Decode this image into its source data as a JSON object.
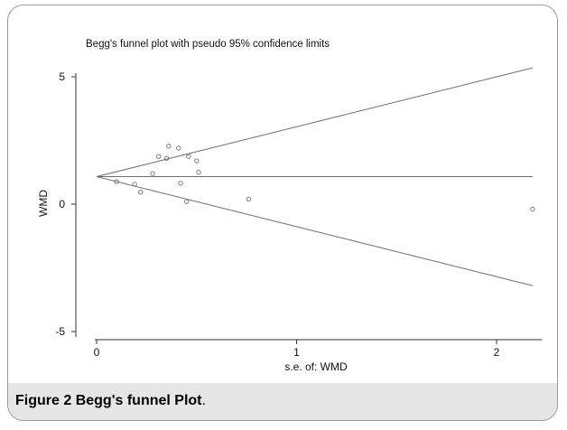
{
  "chart_data": {
    "type": "scatter",
    "title": "Begg's funnel plot with pseudo 95% confidence limits",
    "xlabel": "s.e. of: WMD",
    "ylabel": "WMD",
    "xlim": [
      0,
      2.2
    ],
    "ylim": [
      -5,
      5
    ],
    "x_ticks": [
      "0",
      "1",
      "2"
    ],
    "y_ticks": [
      "5",
      "0",
      "-5"
    ],
    "x_tick_values": [
      0,
      1,
      2
    ],
    "y_tick_values": [
      5,
      0,
      -5
    ],
    "grid": false,
    "pooled_estimate": 1.08,
    "confidence_limits": {
      "upper": [
        [
          0,
          1.08
        ],
        [
          2.18,
          5.35
        ]
      ],
      "lower": [
        [
          0,
          1.08
        ],
        [
          2.18,
          -3.2
        ]
      ]
    },
    "points": [
      {
        "x": 0.1,
        "y": 0.88
      },
      {
        "x": 0.19,
        "y": 0.78
      },
      {
        "x": 0.22,
        "y": 0.47
      },
      {
        "x": 0.28,
        "y": 1.2
      },
      {
        "x": 0.31,
        "y": 1.87
      },
      {
        "x": 0.35,
        "y": 1.8
      },
      {
        "x": 0.36,
        "y": 2.28
      },
      {
        "x": 0.41,
        "y": 2.2
      },
      {
        "x": 0.42,
        "y": 0.82
      },
      {
        "x": 0.45,
        "y": 0.1
      },
      {
        "x": 0.46,
        "y": 1.87
      },
      {
        "x": 0.5,
        "y": 1.7
      },
      {
        "x": 0.51,
        "y": 1.25
      },
      {
        "x": 0.76,
        "y": 0.2
      },
      {
        "x": 2.18,
        "y": -0.2
      }
    ]
  },
  "caption": {
    "number": "Figure 2",
    "title": "Begg's funnel Plot",
    "period": "."
  },
  "colors": {
    "line": "#6e6e6e",
    "point": "#6e6e6e",
    "axis": "#333333",
    "caption_band": "#e6e6e6"
  }
}
